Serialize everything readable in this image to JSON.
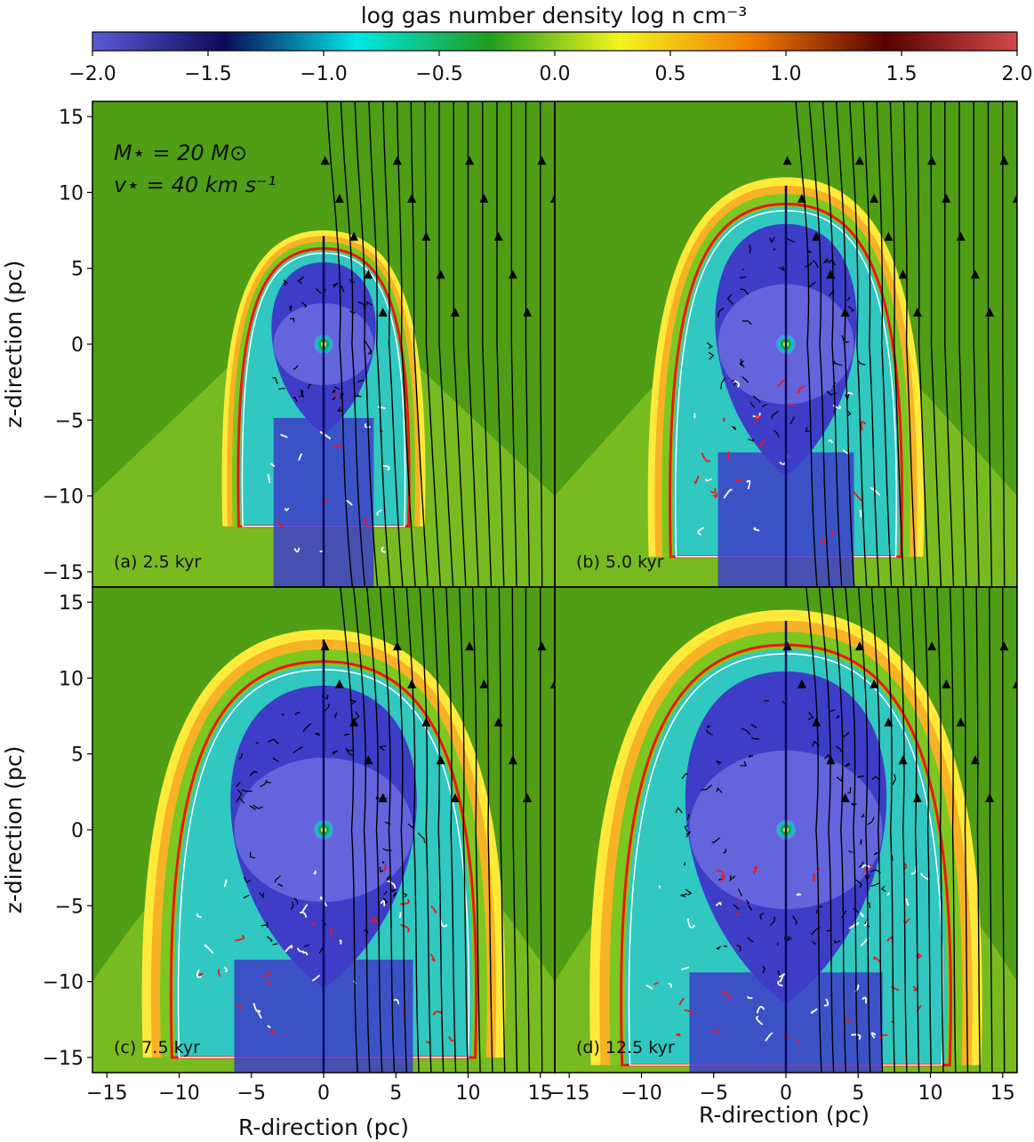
{
  "chart_data": {
    "type": "heatmap",
    "colorbar": {
      "label": "log gas number density log n cm⁻³",
      "min": -2.0,
      "max": 2.0,
      "ticks": [
        "−2.0",
        "−1.5",
        "−1.0",
        "−0.5",
        "0.0",
        "0.5",
        "1.0",
        "1.5",
        "2.0"
      ],
      "colors": [
        "#5a5ad8",
        "#0b0b5a",
        "#00e6e6",
        "#1f9e1f",
        "#f5f51e",
        "#f07a00",
        "#5a0000",
        "#d24a4a"
      ]
    },
    "annotation": {
      "mass_line": "M⋆ = 20 M⊙",
      "velocity_line": "v⋆ = 40 km s⁻¹"
    },
    "xlabel": "R-direction (pc)",
    "ylabel": "z-direction (pc)",
    "xlim": [
      -16,
      16
    ],
    "ylim": [
      -16,
      16
    ],
    "xticks": [
      "−15",
      "−10",
      "−5",
      "0",
      "5",
      "10",
      "15"
    ],
    "yticks": [
      "−15",
      "−10",
      "−5",
      "0",
      "5",
      "10",
      "15"
    ],
    "xlabel_bottom_right": "R-direction (pc)",
    "panels": [
      {
        "id": "a",
        "label": "(a) 2.5 kyr",
        "time_kyr": 2.5,
        "bubble_top_pc": 7.5,
        "bubble_halfwidth_pc": 7.0,
        "bow_base_pc": -12
      },
      {
        "id": "b",
        "label": "(b) 5.0 kyr",
        "time_kyr": 5.0,
        "bubble_top_pc": 11.0,
        "bubble_halfwidth_pc": 9.5,
        "bow_base_pc": -14
      },
      {
        "id": "c",
        "label": "(c) 7.5 kyr",
        "time_kyr": 7.5,
        "bubble_top_pc": 13.2,
        "bubble_halfwidth_pc": 12.5,
        "bow_base_pc": -15
      },
      {
        "id": "d",
        "label": "(d) 12.5 kyr",
        "time_kyr": 12.5,
        "bubble_top_pc": 14.5,
        "bubble_halfwidth_pc": 13.5,
        "bow_base_pc": -15.5
      }
    ],
    "colors": {
      "ambient": "#4f9e16",
      "shell_outer": "#ffea3a",
      "shell_inner": "#f59a1e",
      "wind": "#3d3dc8",
      "wind_core": "#7a7ae6",
      "mixed": "#30c8c0",
      "contour_red": "#ee1515",
      "contour_white": "#ffffff",
      "field_lines": "#000000"
    }
  }
}
